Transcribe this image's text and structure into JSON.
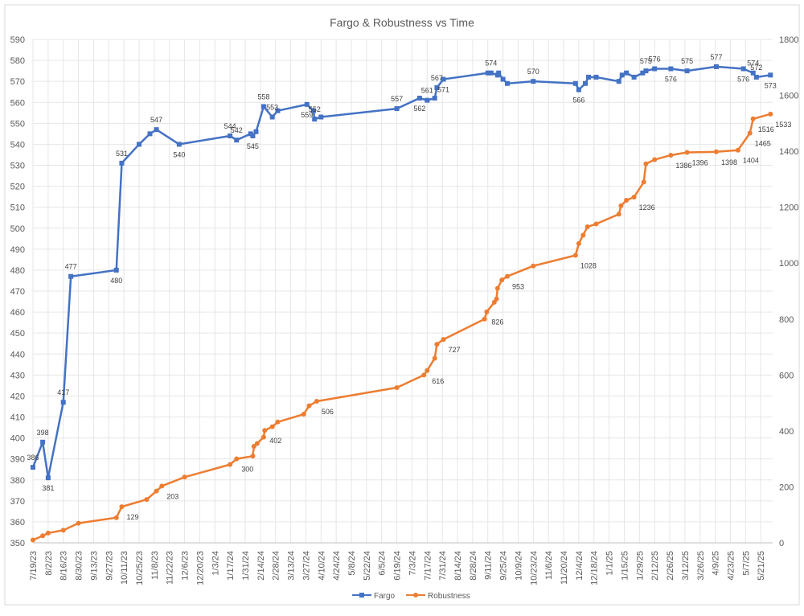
{
  "chart_data": {
    "type": "line",
    "title": "Fargo & Robustness vs Time",
    "xlabel": "",
    "ylabel": "",
    "x_tick_labels": [
      "7/19/23",
      "8/2/23",
      "8/16/23",
      "8/30/23",
      "9/13/23",
      "9/27/23",
      "10/11/23",
      "10/25/23",
      "11/8/23",
      "11/22/23",
      "12/6/23",
      "12/20/23",
      "1/3/24",
      "1/17/24",
      "1/31/24",
      "2/14/24",
      "2/28/24",
      "3/13/24",
      "3/27/24",
      "4/10/24",
      "4/24/24",
      "5/8/24",
      "5/22/24",
      "6/5/24",
      "6/19/24",
      "7/3/24",
      "7/17/24",
      "7/31/24",
      "8/14/24",
      "8/28/24",
      "9/11/24",
      "9/25/24",
      "10/9/24",
      "10/23/24",
      "11/6/24",
      "11/20/24",
      "12/4/24",
      "12/18/24",
      "1/1/25",
      "1/15/25",
      "1/29/25",
      "2/12/25",
      "2/26/25",
      "3/12/25",
      "3/26/25",
      "4/9/25",
      "4/23/25",
      "5/7/25",
      "5/21/25"
    ],
    "xlim": [
      "2023-07-19",
      "2025-06-01"
    ],
    "y_left": {
      "ylim": [
        350,
        590
      ],
      "step": 10
    },
    "y_right": {
      "ylim": [
        0,
        1800
      ],
      "step": 200
    },
    "grid": true,
    "legend_position": "bottom",
    "series": [
      {
        "name": "Fargo",
        "color": "#4472c4",
        "marker": "square",
        "axis": "left",
        "points": [
          [
            "2023-07-19",
            386
          ],
          [
            "2023-07-28",
            398
          ],
          [
            "2023-08-02",
            381
          ],
          [
            "2023-08-16",
            417
          ],
          [
            "2023-08-23",
            477
          ],
          [
            "2023-10-04",
            480
          ],
          [
            "2023-10-09",
            531
          ],
          [
            "2023-10-25",
            540
          ],
          [
            "2023-11-04",
            545
          ],
          [
            "2023-11-10",
            547
          ],
          [
            "2023-12-01",
            540
          ],
          [
            "2024-01-17",
            544
          ],
          [
            "2024-01-23",
            542
          ],
          [
            "2024-02-05",
            545
          ],
          [
            "2024-02-07",
            544
          ],
          [
            "2024-02-10",
            546
          ],
          [
            "2024-02-17",
            558
          ],
          [
            "2024-02-25",
            553
          ],
          [
            "2024-03-01",
            556
          ],
          [
            "2024-03-28",
            559
          ],
          [
            "2024-04-03",
            556
          ],
          [
            "2024-04-04",
            552
          ],
          [
            "2024-04-10",
            553
          ],
          [
            "2024-06-19",
            557
          ],
          [
            "2024-07-10",
            562
          ],
          [
            "2024-07-17",
            561
          ],
          [
            "2024-07-24",
            562
          ],
          [
            "2024-07-26",
            567
          ],
          [
            "2024-08-01",
            571
          ],
          [
            "2024-09-11",
            574
          ],
          [
            "2024-09-14",
            574
          ],
          [
            "2024-09-20",
            573
          ],
          [
            "2024-09-21",
            574
          ],
          [
            "2024-09-25",
            571
          ],
          [
            "2024-09-29",
            569
          ],
          [
            "2024-10-23",
            570
          ],
          [
            "2024-12-01",
            569
          ],
          [
            "2024-12-04",
            566
          ],
          [
            "2024-12-10",
            569
          ],
          [
            "2024-12-13",
            572
          ],
          [
            "2024-12-20",
            572
          ],
          [
            "2025-01-10",
            570
          ],
          [
            "2025-01-13",
            573
          ],
          [
            "2025-01-17",
            574
          ],
          [
            "2025-01-24",
            572
          ],
          [
            "2025-02-01",
            574
          ],
          [
            "2025-02-04",
            575
          ],
          [
            "2025-02-12",
            576
          ],
          [
            "2025-02-27",
            576
          ],
          [
            "2025-03-14",
            575
          ],
          [
            "2025-04-10",
            577
          ],
          [
            "2025-05-05",
            576
          ],
          [
            "2025-05-14",
            574
          ],
          [
            "2025-05-17",
            572
          ],
          [
            "2025-05-30",
            573
          ]
        ],
        "data_labels": [
          {
            "x": "2023-07-19",
            "text": "386"
          },
          {
            "x": "2023-07-28",
            "text": "398"
          },
          {
            "x": "2023-08-02",
            "text": "381"
          },
          {
            "x": "2023-08-16",
            "text": "417"
          },
          {
            "x": "2023-08-23",
            "text": "477"
          },
          {
            "x": "2023-10-04",
            "text": "480"
          },
          {
            "x": "2023-10-09",
            "text": "531"
          },
          {
            "x": "2023-11-10",
            "text": "547"
          },
          {
            "x": "2023-12-01",
            "text": "540"
          },
          {
            "x": "2024-01-17",
            "text": "544"
          },
          {
            "x": "2024-01-23",
            "text": "542"
          },
          {
            "x": "2024-02-07",
            "text": "545"
          },
          {
            "x": "2024-02-17",
            "text": "558"
          },
          {
            "x": "2024-02-25",
            "text": "553"
          },
          {
            "x": "2024-03-28",
            "text": "559"
          },
          {
            "x": "2024-04-04",
            "text": "552"
          },
          {
            "x": "2024-06-19",
            "text": "557"
          },
          {
            "x": "2024-07-10",
            "text": "562"
          },
          {
            "x": "2024-07-17",
            "text": "561"
          },
          {
            "x": "2024-07-26",
            "text": "567"
          },
          {
            "x": "2024-08-01",
            "text": "571"
          },
          {
            "x": "2024-09-14",
            "text": "574"
          },
          {
            "x": "2024-10-23",
            "text": "570"
          },
          {
            "x": "2024-12-04",
            "text": "566"
          },
          {
            "x": "2025-02-04",
            "text": "575"
          },
          {
            "x": "2025-02-12",
            "text": "576"
          },
          {
            "x": "2025-02-27",
            "text": "576"
          },
          {
            "x": "2025-03-14",
            "text": "575"
          },
          {
            "x": "2025-04-10",
            "text": "577"
          },
          {
            "x": "2025-05-05",
            "text": "576"
          },
          {
            "x": "2025-05-14",
            "text": "574"
          },
          {
            "x": "2025-05-17",
            "text": "572"
          },
          {
            "x": "2025-05-30",
            "text": "573"
          }
        ]
      },
      {
        "name": "Robustness",
        "color": "#ed7d31",
        "marker": "circle",
        "axis": "right",
        "points": [
          [
            "2023-07-19",
            10
          ],
          [
            "2023-07-28",
            25
          ],
          [
            "2023-08-02",
            35
          ],
          [
            "2023-08-16",
            45
          ],
          [
            "2023-08-30",
            70
          ],
          [
            "2023-10-04",
            90
          ],
          [
            "2023-10-09",
            129
          ],
          [
            "2023-11-01",
            155
          ],
          [
            "2023-11-10",
            185
          ],
          [
            "2023-11-15",
            203
          ],
          [
            "2023-12-06",
            235
          ],
          [
            "2024-01-17",
            280
          ],
          [
            "2024-01-23",
            300
          ],
          [
            "2024-02-07",
            310
          ],
          [
            "2024-02-08",
            345
          ],
          [
            "2024-02-11",
            355
          ],
          [
            "2024-02-17",
            378
          ],
          [
            "2024-02-18",
            402
          ],
          [
            "2024-02-25",
            415
          ],
          [
            "2024-03-01",
            432
          ],
          [
            "2024-03-25",
            460
          ],
          [
            "2024-03-30",
            490
          ],
          [
            "2024-04-06",
            506
          ],
          [
            "2024-06-19",
            555
          ],
          [
            "2024-07-14",
            600
          ],
          [
            "2024-07-17",
            616
          ],
          [
            "2024-07-24",
            660
          ],
          [
            "2024-07-26",
            710
          ],
          [
            "2024-08-01",
            727
          ],
          [
            "2024-09-08",
            800
          ],
          [
            "2024-09-10",
            826
          ],
          [
            "2024-09-17",
            860
          ],
          [
            "2024-09-19",
            872
          ],
          [
            "2024-09-20",
            910
          ],
          [
            "2024-09-24",
            940
          ],
          [
            "2024-09-29",
            953
          ],
          [
            "2024-10-23",
            990
          ],
          [
            "2024-12-01",
            1028
          ],
          [
            "2024-12-04",
            1070
          ],
          [
            "2024-12-08",
            1100
          ],
          [
            "2024-12-12",
            1130
          ],
          [
            "2024-12-20",
            1140
          ],
          [
            "2025-01-10",
            1175
          ],
          [
            "2025-01-12",
            1205
          ],
          [
            "2025-01-17",
            1225
          ],
          [
            "2025-01-24",
            1236
          ],
          [
            "2025-02-02",
            1290
          ],
          [
            "2025-02-04",
            1355
          ],
          [
            "2025-02-12",
            1370
          ],
          [
            "2025-02-27",
            1386
          ],
          [
            "2025-03-14",
            1396
          ],
          [
            "2025-04-10",
            1398
          ],
          [
            "2025-04-30",
            1404
          ],
          [
            "2025-05-11",
            1465
          ],
          [
            "2025-05-14",
            1516
          ],
          [
            "2025-05-30",
            1533
          ]
        ],
        "data_labels": [
          {
            "x": "2023-10-09",
            "text": "129"
          },
          {
            "x": "2023-11-15",
            "text": "203"
          },
          {
            "x": "2024-01-23",
            "text": "300"
          },
          {
            "x": "2024-02-18",
            "text": "402"
          },
          {
            "x": "2024-04-06",
            "text": "506"
          },
          {
            "x": "2024-07-17",
            "text": "616"
          },
          {
            "x": "2024-08-01",
            "text": "727"
          },
          {
            "x": "2024-09-10",
            "text": "826"
          },
          {
            "x": "2024-09-29",
            "text": "953"
          },
          {
            "x": "2024-12-01",
            "text": "1028"
          },
          {
            "x": "2025-01-24",
            "text": "1236"
          },
          {
            "x": "2025-02-27",
            "text": "1386"
          },
          {
            "x": "2025-03-14",
            "text": "1396"
          },
          {
            "x": "2025-04-10",
            "text": "1398"
          },
          {
            "x": "2025-04-30",
            "text": "1404"
          },
          {
            "x": "2025-05-11",
            "text": "1465"
          },
          {
            "x": "2025-05-14",
            "text": "1516"
          },
          {
            "x": "2025-05-30",
            "text": "1533"
          }
        ]
      }
    ]
  }
}
